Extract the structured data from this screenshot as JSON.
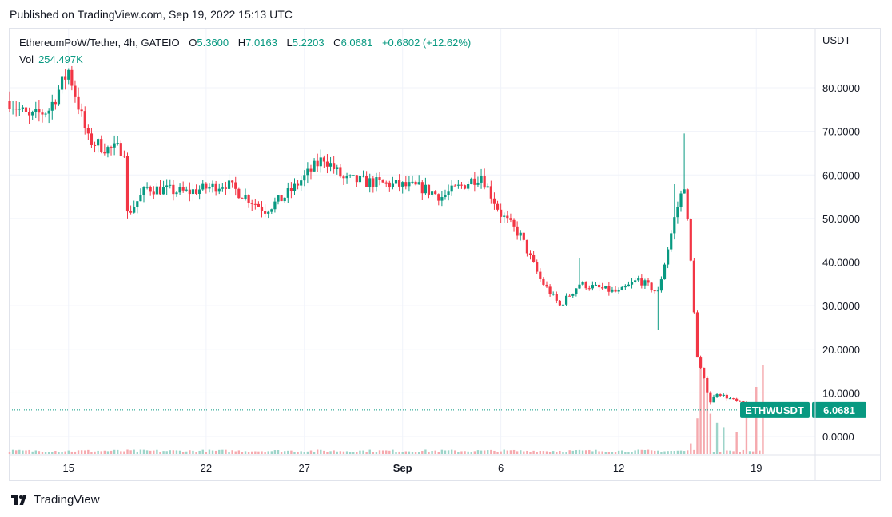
{
  "header": {
    "published": "Published on TradingView.com, Sep 19, 2022 15:13 UTC"
  },
  "legend": {
    "symbol": "EthereumPoW/Tether, 4h, GATEIO",
    "o_label": "O",
    "o_value": "5.3600",
    "h_label": "H",
    "h_value": "7.0163",
    "l_label": "L",
    "l_value": "5.2203",
    "c_label": "C",
    "c_value": "6.0681",
    "change": "+0.6802 (+12.62%)",
    "vol_label": "Vol",
    "vol_value": "254.497K"
  },
  "price_scale": {
    "currency": "USDT"
  },
  "price_tag": {
    "ticker": "ETHWUSDT",
    "price": "6.0681"
  },
  "footer": {
    "brand": "TradingView"
  },
  "colors": {
    "up": "#089981",
    "down": "#f23645",
    "vol_up": "#9dd4c9",
    "vol_down": "#f5a9ae",
    "grid": "#f0f3fa",
    "axis_text": "#131722"
  },
  "chart_data": {
    "type": "candlestick",
    "interval": "4h",
    "y_range": [
      -4,
      88
    ],
    "y_ticks": [
      "80.0000",
      "70.0000",
      "60.0000",
      "50.0000",
      "40.0000",
      "30.0000",
      "20.0000",
      "10.0000",
      "0.0000"
    ],
    "x_ticks": [
      "15",
      "22",
      "27",
      "Sep",
      "6",
      "12",
      "19"
    ],
    "x_range": [
      "2022-08-12",
      "2022-09-22"
    ],
    "last_close": 6.0681,
    "anchors": [
      {
        "t": "2022-08-12",
        "p": 77
      },
      {
        "t": "2022-08-13",
        "p": 73
      },
      {
        "t": "2022-08-14",
        "p": 75
      },
      {
        "t": "2022-08-15",
        "p": 84
      },
      {
        "t": "2022-08-16",
        "p": 68
      },
      {
        "t": "2022-08-17",
        "p": 66
      },
      {
        "t": "2022-08-17T20:00",
        "p": 66
      },
      {
        "t": "2022-08-18",
        "p": 51
      },
      {
        "t": "2022-08-19",
        "p": 57
      },
      {
        "t": "2022-08-21",
        "p": 56
      },
      {
        "t": "2022-08-23",
        "p": 58
      },
      {
        "t": "2022-08-25",
        "p": 52
      },
      {
        "t": "2022-08-26",
        "p": 55
      },
      {
        "t": "2022-08-28",
        "p": 64
      },
      {
        "t": "2022-08-29",
        "p": 59
      },
      {
        "t": "2022-08-31",
        "p": 58
      },
      {
        "t": "2022-09-02",
        "p": 57
      },
      {
        "t": "2022-09-03",
        "p": 55
      },
      {
        "t": "2022-09-05",
        "p": 60
      },
      {
        "t": "2022-09-06",
        "p": 51
      },
      {
        "t": "2022-09-07",
        "p": 46
      },
      {
        "t": "2022-09-08",
        "p": 36
      },
      {
        "t": "2022-09-09",
        "p": 30
      },
      {
        "t": "2022-09-10",
        "p": 35
      },
      {
        "t": "2022-09-12",
        "p": 33
      },
      {
        "t": "2022-09-13",
        "p": 36
      },
      {
        "t": "2022-09-14",
        "p": 33
      },
      {
        "t": "2022-09-14T20:00",
        "p": 50
      },
      {
        "t": "2022-09-15T08:00",
        "p": 58
      },
      {
        "t": "2022-09-15T16:00",
        "p": 40
      },
      {
        "t": "2022-09-16",
        "p": 18
      },
      {
        "t": "2022-09-16T16:00",
        "p": 8
      },
      {
        "t": "2022-09-17",
        "p": 10
      },
      {
        "t": "2022-09-18",
        "p": 8
      },
      {
        "t": "2022-09-19T08:00",
        "p": 6.07
      }
    ],
    "volume": {
      "latest": "254.497K",
      "recent": [
        {
          "t": "2022-09-15T16:00",
          "v": 0.12
        },
        {
          "t": "2022-09-16",
          "v": 0.4
        },
        {
          "t": "2022-09-16T04:00",
          "v": 1.0
        },
        {
          "t": "2022-09-16T08:00",
          "v": 0.85
        },
        {
          "t": "2022-09-16T12:00",
          "v": 0.7
        },
        {
          "t": "2022-09-16T16:00",
          "v": 0.45
        },
        {
          "t": "2022-09-17",
          "v": 0.35
        },
        {
          "t": "2022-09-17T08:00",
          "v": 0.3
        },
        {
          "t": "2022-09-18",
          "v": 0.25
        },
        {
          "t": "2022-09-18T12:00",
          "v": 0.5
        },
        {
          "t": "2022-09-19",
          "v": 0.75
        },
        {
          "t": "2022-09-19T08:00",
          "v": 1.0
        }
      ]
    }
  }
}
